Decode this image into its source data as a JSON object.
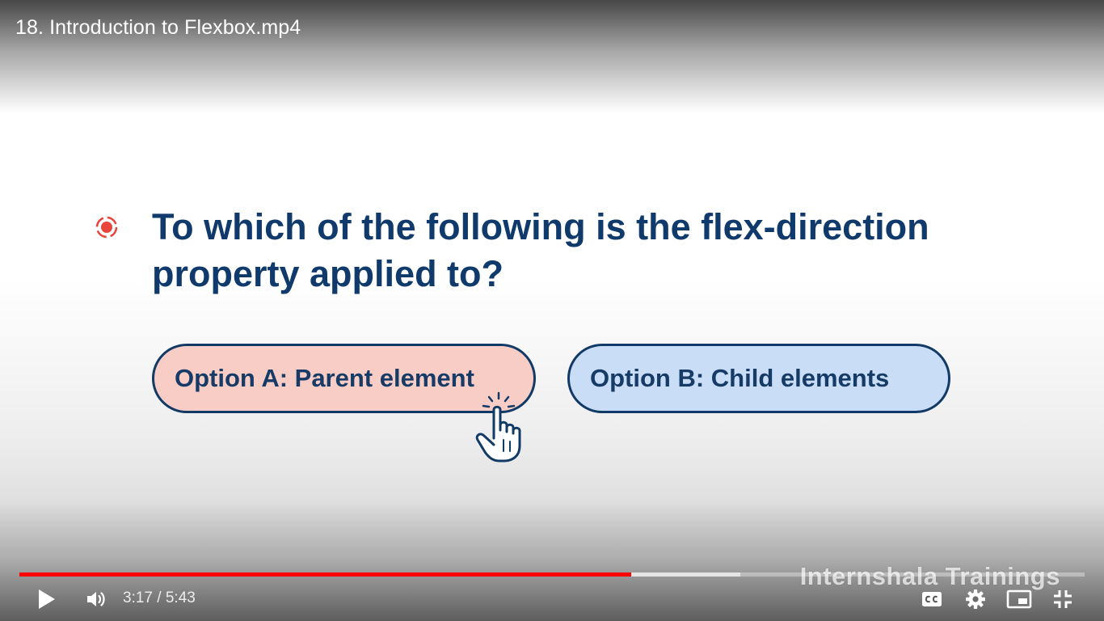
{
  "video": {
    "title": "18. Introduction to Flexbox.mp4"
  },
  "slide": {
    "question": "To which of the following is the flex-direction property applied to?",
    "options": [
      {
        "label": "Option A: Parent element",
        "fill": "#f8cdc6"
      },
      {
        "label": "Option B: Child elements",
        "fill": "#c9ddf6"
      }
    ],
    "text_color": "#0f3a6b",
    "bullet_color": "#e8453c",
    "watermark": "Internshala Trainings"
  },
  "player": {
    "current_time": "3:17",
    "duration": "5:43",
    "time_display": "3:17 / 5:43",
    "played_fraction": 0.574,
    "buffered_fraction": 0.677,
    "progress_color": "#ff0000",
    "controls": {
      "play": "play-icon",
      "volume": "volume-icon",
      "captions": "captions-icon",
      "settings": "gear-icon",
      "miniplayer": "miniplayer-icon",
      "exit_fullscreen": "exit-fullscreen-icon"
    }
  }
}
